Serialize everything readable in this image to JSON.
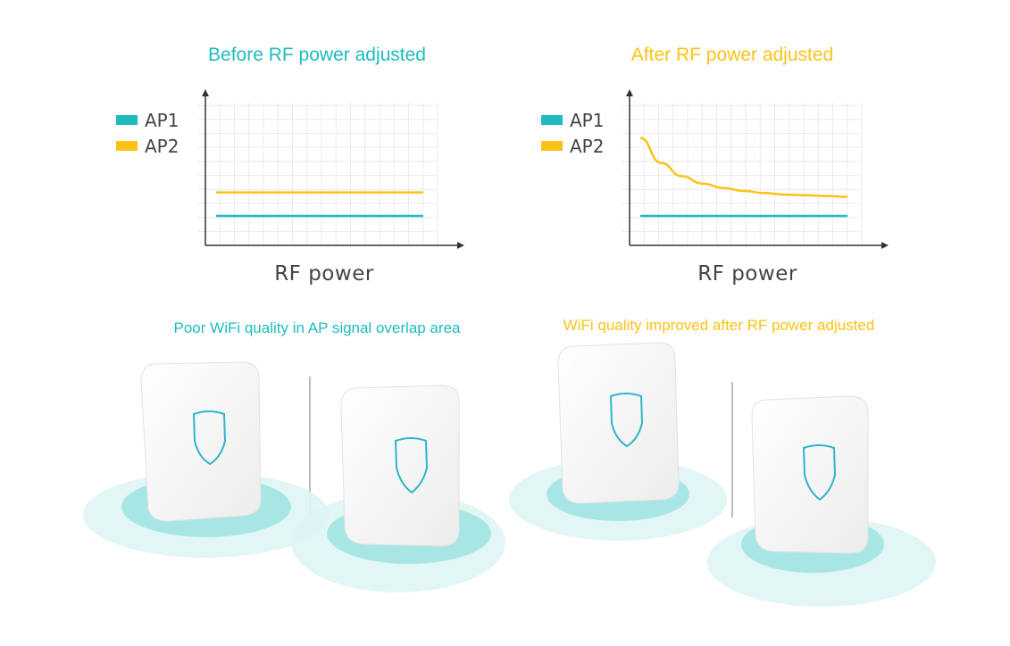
{
  "colors": {
    "ap1": "#1ebcbe",
    "ap2": "#fbc216",
    "axis": "#333333",
    "grid": "#ebebeb",
    "ring_outer": "#dff5f5",
    "ring_inner": "#a8e6e6",
    "base": "#19b5b3",
    "device": "#f7f7f7",
    "shield": "#30b5c9"
  },
  "before": {
    "title": "Before RF power adjusted",
    "xlabel": "RF power",
    "caption": "Poor WiFi quality in AP signal overlap area"
  },
  "after": {
    "title": "After RF power adjusted",
    "xlabel": "RF power",
    "caption": "WiFi quality improved after RF power adjusted"
  },
  "icons": [
    "shield-icon"
  ],
  "chart_data": [
    {
      "type": "line",
      "title": "Before RF power adjusted",
      "xlabel": "RF power",
      "ylabel": "",
      "grid": true,
      "legend_position": "top-left",
      "x": [
        0,
        1,
        2,
        3,
        4,
        5,
        6,
        7,
        8,
        9,
        10
      ],
      "xlim": [
        0,
        10
      ],
      "ylim": [
        0,
        10
      ],
      "series": [
        {
          "name": "AP1",
          "values": [
            2,
            2,
            2,
            2,
            2,
            2,
            2,
            2,
            2,
            2,
            2
          ]
        },
        {
          "name": "AP2",
          "values": [
            3.6,
            3.6,
            3.6,
            3.6,
            3.6,
            3.6,
            3.6,
            3.6,
            3.6,
            3.6,
            3.6
          ]
        }
      ]
    },
    {
      "type": "line",
      "title": "After RF power adjusted",
      "xlabel": "RF power",
      "ylabel": "",
      "grid": true,
      "legend_position": "top-left",
      "x": [
        0,
        1,
        2,
        3,
        4,
        5,
        6,
        7,
        8,
        9,
        10
      ],
      "xlim": [
        0,
        10
      ],
      "ylim": [
        0,
        10
      ],
      "series": [
        {
          "name": "AP1",
          "values": [
            2,
            2,
            2,
            2,
            2,
            2,
            2,
            2,
            2,
            2,
            2
          ]
        },
        {
          "name": "AP2",
          "values": [
            7.3,
            5.6,
            4.7,
            4.2,
            3.9,
            3.7,
            3.55,
            3.45,
            3.4,
            3.35,
            3.3
          ]
        }
      ]
    }
  ]
}
